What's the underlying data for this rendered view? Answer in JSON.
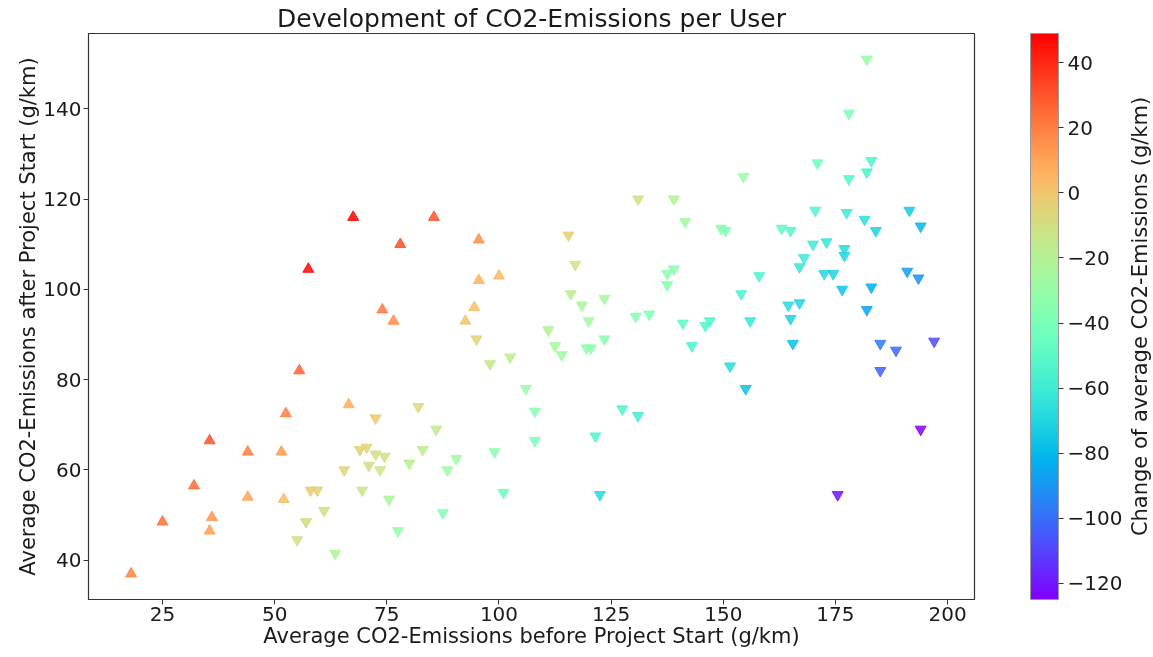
{
  "chart_data": {
    "type": "scatter",
    "title": "Development of CO2-Emissions per User",
    "xlabel": "Average CO2-Emissions before Project Start (g/km)",
    "ylabel": "Average CO2-Emissions after Project Start (g/km)",
    "clabel": "Change of average CO2-Emissions (g/km)",
    "xlim": [
      8.5,
      206
    ],
    "ylim": [
      31.3,
      156.7
    ],
    "xticks": [
      25,
      50,
      75,
      100,
      125,
      150,
      175,
      200
    ],
    "yticks": [
      40,
      60,
      80,
      100,
      120,
      140
    ],
    "clim": [
      -125,
      49
    ],
    "cticks": [
      40,
      20,
      0,
      {
        "value": -20,
        "label": "−20"
      },
      {
        "value": -40,
        "label": "−40"
      },
      {
        "value": -60,
        "label": "−60"
      },
      {
        "value": -80,
        "label": "−80"
      },
      {
        "value": -100,
        "label": "−100"
      },
      {
        "value": -120,
        "label": "−120"
      }
    ],
    "marker": "triangle",
    "series": [
      {
        "x": [
          18,
          25,
          32,
          35.5,
          36,
          35.5,
          44,
          44,
          51.5,
          52,
          52.5,
          55.5,
          66.5,
          57.5,
          67.5,
          78,
          85.5,
          95.5,
          95.5,
          100,
          74,
          76.5,
          94.5,
          92.5,
          69,
          70.5,
          71,
          72.5,
          74.5,
          73.5,
          69.5,
          65.5,
          58,
          59.5,
          61,
          57,
          55,
          63.5,
          72.5,
          95,
          98,
          102.5,
          111,
          112.5,
          114,
          119.5,
          120.5,
          123.5,
          120,
          141,
          143,
          106,
          108,
          108,
          99,
          101,
          127.5,
          131,
          121.5,
          122.5,
          82,
          86,
          83,
          80,
          90.5,
          88.5,
          75.5,
          87.5,
          77.5,
          131,
          139,
          141.5,
          115.5,
          117,
          116,
          118.5,
          123.5,
          137.5,
          139,
          137.5,
          130.5,
          133.5,
          182,
          178,
          154.5,
          171,
          183,
          182,
          178,
          149.5,
          150.5,
          163,
          165,
          170.5,
          177.5,
          181.5,
          184,
          191.5,
          194,
          170,
          173,
          168,
          167,
          177,
          177,
          172.5,
          174.5,
          176.5,
          183,
          182,
          191,
          193.5,
          158,
          154,
          156,
          164.5,
          167,
          165,
          146,
          147,
          185,
          188.5,
          197,
          185,
          175.5,
          194,
          165.5,
          151.5,
          155
        ],
        "values": [
          37,
          48.5,
          56.5,
          66.5,
          49.5,
          46.5,
          64,
          54,
          64,
          53.5,
          72.5,
          82,
          74.5,
          104.5,
          116,
          110,
          116,
          111,
          102,
          103,
          95.5,
          93,
          96,
          93,
          64.5,
          65,
          61,
          63.5,
          63,
          60,
          55.5,
          60,
          55.5,
          55.5,
          51,
          48.5,
          44.5,
          41.5,
          71.5,
          89,
          83.5,
          85,
          91,
          87.5,
          85.5,
          87,
          87,
          89,
          93,
          92.5,
          87.5,
          78,
          73,
          66.5,
          64,
          55,
          73.5,
          72,
          67.5,
          54.5,
          74,
          69,
          64.5,
          61.5,
          62.5,
          60,
          53.5,
          50.5,
          46.5,
          120,
          120,
          115,
          112,
          105.5,
          99,
          96.5,
          98,
          103.5,
          104.5,
          101,
          94,
          94.5,
          151,
          139,
          125,
          128,
          128.5,
          126,
          124.5,
          113.5,
          113,
          113.5,
          113,
          117.5,
          117,
          115.5,
          113,
          117.5,
          114,
          110,
          110.5,
          107,
          105,
          109,
          107.5,
          103.5,
          103.5,
          100,
          100.5,
          95.5,
          104,
          102.5,
          103,
          99,
          93,
          96.5,
          97,
          93.5,
          92,
          93,
          88,
          86.5,
          88.5,
          82,
          54.5,
          69,
          88,
          83,
          78
        ],
        "cvalues": [
          19,
          23.5,
          24.5,
          31,
          13.5,
          11,
          20,
          10,
          12.5,
          1.5,
          20,
          26.5,
          8,
          47,
          48.5,
          32,
          30.5,
          15.5,
          6.5,
          3,
          21.5,
          16.5,
          1.5,
          0.5,
          -4.5,
          -5.5,
          -10,
          -9,
          -11.5,
          -13.5,
          -14,
          -5.5,
          -2.5,
          -4,
          -10,
          -8.5,
          -10.5,
          -22,
          -1,
          -6,
          -14.5,
          -17.5,
          -20,
          -25,
          -28.5,
          -32.5,
          -33.5,
          -34.5,
          -27,
          -48.5,
          -55.5,
          -28,
          -35,
          -41.5,
          -35,
          -46,
          -54,
          -59,
          -54,
          -68,
          -8,
          -17,
          -18.5,
          -18.5,
          -28,
          -28.5,
          -22,
          -37,
          -31,
          -11,
          -19,
          -26.5,
          -3.5,
          -11.5,
          -17,
          -22,
          -25.5,
          -34,
          -34.5,
          -36.5,
          -36.5,
          -39,
          -31,
          -39,
          -29.5,
          -43,
          -54.5,
          -56,
          -53.5,
          -36,
          -37.5,
          -49.5,
          -52,
          -53,
          -60.5,
          -66,
          -71,
          -74,
          -80,
          -60,
          -62.5,
          -61,
          -62,
          -68,
          -69.5,
          -69,
          -71,
          -76.5,
          -82.5,
          -86.5,
          -87,
          -91,
          -55,
          -55,
          -63,
          -68,
          -70,
          -71.5,
          -54,
          -54,
          -97,
          -102,
          -108.5,
          -103,
          -121,
          -125,
          -77.5,
          -68.5,
          -77
        ]
      }
    ]
  }
}
